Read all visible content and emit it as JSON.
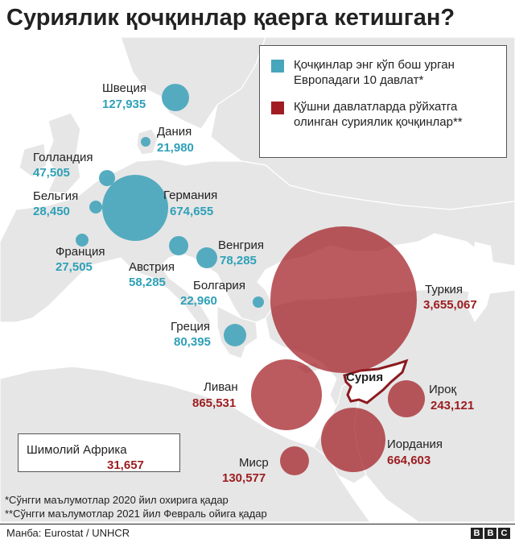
{
  "title": "Сурия­лик қочқинлар қаерга кетишган?",
  "legend": {
    "eu": {
      "text": "Қочқинлар энг кўп бош урган Европадаги 10 давлат*",
      "color": "#48a6bc"
    },
    "nonbloc": {
      "text": "Қўшни давлатларда рўйхатга олинган сурия­лик қочқинлар**",
      "color": "#a11c22"
    }
  },
  "syria_label": "Сурия",
  "countries": {
    "sweden": {
      "name": "Швеция",
      "value": "127,935"
    },
    "denmark": {
      "name": "Дания",
      "value": "21,980"
    },
    "netherlands": {
      "name": "Голландия",
      "value": "47,505"
    },
    "belgium": {
      "name": "Бельгия",
      "value": "28,450"
    },
    "germany": {
      "name": "Германия",
      "value": "674,655"
    },
    "france": {
      "name": "Франция",
      "value": "27,505"
    },
    "hungary": {
      "name": "Венгрия",
      "value": "78,285"
    },
    "austria": {
      "name": "Австрия",
      "value": "58,285"
    },
    "bulgaria": {
      "name": "Болгария",
      "value": "22,960"
    },
    "greece": {
      "name": "Греция",
      "value": "80,395"
    },
    "turkey": {
      "name": "Туркия",
      "value": "3,655,067"
    },
    "lebanon": {
      "name": "Ливан",
      "value": "865,531"
    },
    "iraq": {
      "name": "Ироқ",
      "value": "243,121"
    },
    "jordan": {
      "name": "Иордания",
      "value": "664,603"
    },
    "egypt": {
      "name": "Миср",
      "value": "130,577"
    },
    "north_africa": {
      "name": "Шимолий Африка",
      "value": "31,657"
    }
  },
  "footnotes": [
    "*Сўнгги маълумотлар 2020 йил охирига қадар",
    "**Сўнгги маълумотлар 2021 йил Февраль ойига қадар"
  ],
  "source": "Манба: Eurostat / UNHCR",
  "logo": [
    "B",
    "B",
    "C"
  ],
  "colors": {
    "eu_circle": "#48a6bc",
    "eu_text": "#2ea0b7",
    "nb_circle": "#a11c22",
    "nb_text": "#9c1c1f",
    "land": "#e8e8e8",
    "sea": "#ffffff",
    "border": "#ffffff"
  }
}
